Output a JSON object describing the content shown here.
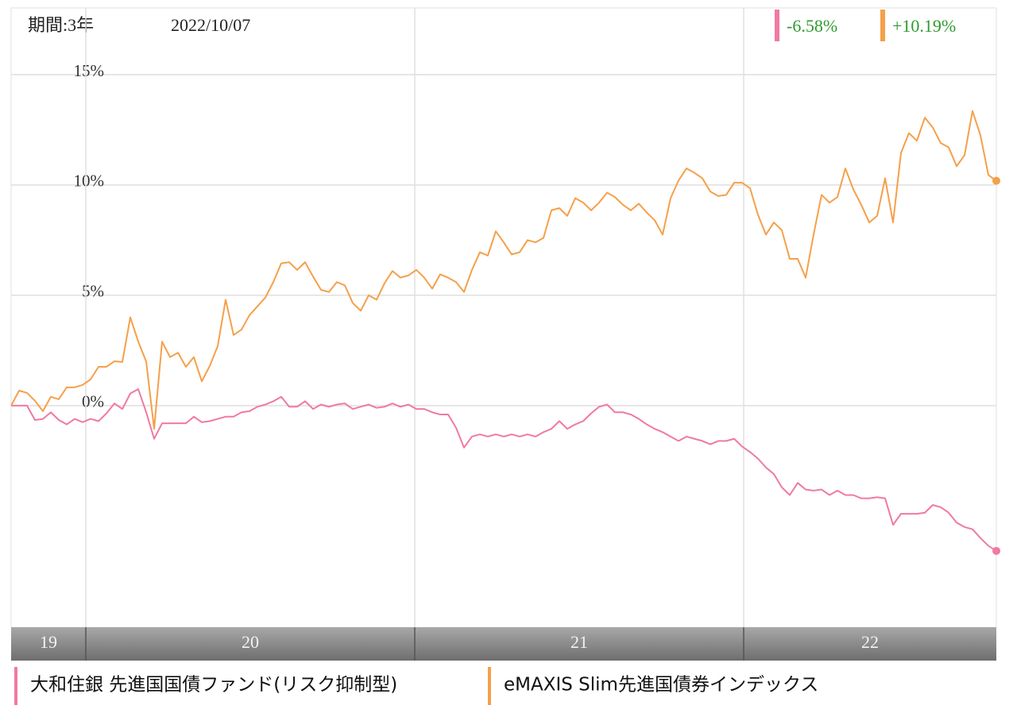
{
  "chart_data": {
    "type": "line",
    "period_label": "期間:3年",
    "date": "2022/10/07",
    "ylim": [
      -10.04,
      18.02
    ],
    "yticks": [
      {
        "value": 0,
        "label": "0%"
      },
      {
        "value": 5,
        "label": "5%"
      },
      {
        "value": 10,
        "label": "10%"
      },
      {
        "value": 15,
        "label": "15%"
      }
    ],
    "grid": true,
    "xlim": [
      0,
      124
    ],
    "xticks": [
      9.4,
      50.8,
      92.2
    ],
    "year_labels": [
      "19",
      "20",
      "21",
      "22"
    ],
    "series": [
      {
        "name": "大和住銀 先進国国債ファンド(リスク抑制型)",
        "color": "#f07aa0",
        "end_label": "-6.58%",
        "values": [
          0,
          0,
          0,
          -0.65,
          -0.6,
          -0.3,
          -0.65,
          -0.85,
          -0.6,
          -0.75,
          -0.6,
          -0.7,
          -0.35,
          0.1,
          -0.15,
          0.55,
          0.75,
          -0.3,
          -1.5,
          -0.8,
          -0.8,
          -0.8,
          -0.8,
          -0.5,
          -0.75,
          -0.7,
          -0.6,
          -0.5,
          -0.5,
          -0.3,
          -0.25,
          -0.05,
          0.05,
          0.2,
          0.4,
          -0.05,
          -0.05,
          0.2,
          -0.15,
          0.05,
          -0.05,
          0.05,
          0.1,
          -0.15,
          -0.05,
          0.05,
          -0.1,
          -0.05,
          0.1,
          -0.05,
          0.05,
          -0.15,
          -0.15,
          -0.3,
          -0.4,
          -0.4,
          -1.0,
          -1.9,
          -1.4,
          -1.3,
          -1.4,
          -1.3,
          -1.4,
          -1.3,
          -1.4,
          -1.3,
          -1.4,
          -1.2,
          -1.05,
          -0.7,
          -1.05,
          -0.85,
          -0.7,
          -0.35,
          -0.05,
          0.05,
          -0.3,
          -0.3,
          -0.4,
          -0.6,
          -0.85,
          -1.05,
          -1.2,
          -1.4,
          -1.6,
          -1.4,
          -1.5,
          -1.6,
          -1.75,
          -1.6,
          -1.6,
          -1.5,
          -1.85,
          -2.1,
          -2.4,
          -2.8,
          -3.1,
          -3.7,
          -4.05,
          -3.5,
          -3.8,
          -3.85,
          -3.8,
          -4.05,
          -3.85,
          -4.05,
          -4.05,
          -4.2,
          -4.2,
          -4.15,
          -4.2,
          -5.4,
          -4.9,
          -4.9,
          -4.9,
          -4.85,
          -4.5,
          -4.6,
          -4.85,
          -5.3,
          -5.5,
          -5.6,
          -6.0,
          -6.35,
          -6.58
        ]
      },
      {
        "name": "eMAXIS Slim先進国債券インデックス",
        "color": "#f5a04a",
        "end_label": "+10.19%",
        "values": [
          0,
          0.68,
          0.58,
          0.22,
          -0.25,
          0.4,
          0.29,
          0.83,
          0.83,
          0.94,
          1.19,
          1.76,
          1.76,
          2.01,
          1.98,
          4.0,
          2.9,
          2.0,
          -1.05,
          2.9,
          2.2,
          2.4,
          1.76,
          2.2,
          1.1,
          1.8,
          2.7,
          4.8,
          3.2,
          3.45,
          4.1,
          4.5,
          4.9,
          5.6,
          6.45,
          6.5,
          6.15,
          6.5,
          5.85,
          5.25,
          5.15,
          5.6,
          5.45,
          4.65,
          4.3,
          5.0,
          4.8,
          5.55,
          6.1,
          5.8,
          5.9,
          6.15,
          5.8,
          5.3,
          5.95,
          5.8,
          5.6,
          5.15,
          6.15,
          6.95,
          6.8,
          7.9,
          7.4,
          6.85,
          6.95,
          7.5,
          7.4,
          7.6,
          8.85,
          8.95,
          8.6,
          9.4,
          9.2,
          8.85,
          9.2,
          9.65,
          9.45,
          9.1,
          8.85,
          9.15,
          8.75,
          8.4,
          7.75,
          9.4,
          10.2,
          10.75,
          10.55,
          10.3,
          9.7,
          9.5,
          9.55,
          10.1,
          10.1,
          9.85,
          8.65,
          7.75,
          8.3,
          7.95,
          6.65,
          6.65,
          5.8,
          7.75,
          9.55,
          9.2,
          9.45,
          10.75,
          9.8,
          9.1,
          8.3,
          8.6,
          10.3,
          8.3,
          11.45,
          12.35,
          12.0,
          13.05,
          12.6,
          11.9,
          11.7,
          10.85,
          11.35,
          13.35,
          12.25,
          10.45,
          10.19
        ]
      }
    ]
  }
}
